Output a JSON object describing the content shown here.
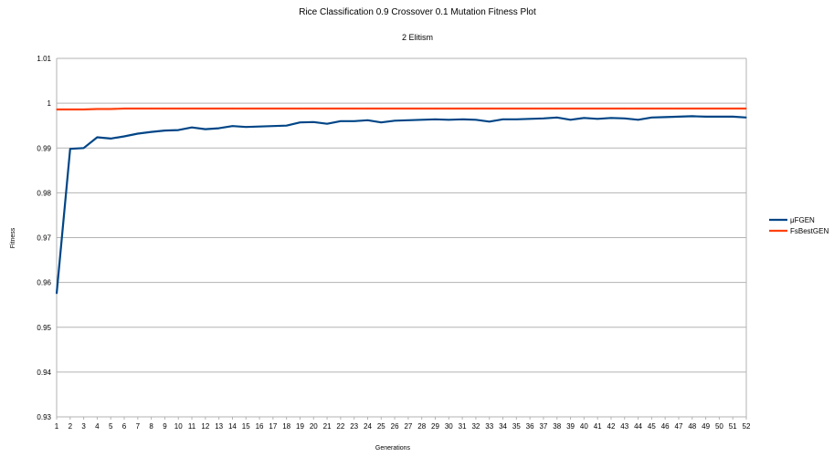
{
  "chart_data": {
    "type": "line",
    "title": "Rice Classification 0.9 Crossover 0.1 Mutation Fitness Plot",
    "subtitle": "2 Elitism",
    "xlabel": "Generations",
    "ylabel": "Fitness",
    "ylim": [
      0.93,
      1.01
    ],
    "yticks": [
      "0.93",
      "0.94",
      "0.95",
      "0.96",
      "0.97",
      "0.98",
      "0.99",
      "1",
      "1.01"
    ],
    "grid": true,
    "legend_position": "right",
    "x": [
      1,
      2,
      3,
      4,
      5,
      6,
      7,
      8,
      9,
      10,
      11,
      12,
      13,
      14,
      15,
      16,
      17,
      18,
      19,
      20,
      21,
      22,
      23,
      24,
      25,
      26,
      27,
      28,
      29,
      30,
      31,
      32,
      33,
      34,
      35,
      36,
      37,
      38,
      39,
      40,
      41,
      42,
      43,
      44,
      45,
      46,
      47,
      48,
      49,
      50,
      51,
      52
    ],
    "series": [
      {
        "name": "μFGEN",
        "color": "#004586",
        "values": [
          0.9575,
          0.9898,
          0.99,
          0.9924,
          0.9921,
          0.9926,
          0.9932,
          0.9936,
          0.9939,
          0.994,
          0.9946,
          0.9942,
          0.9944,
          0.9949,
          0.9947,
          0.9948,
          0.9949,
          0.995,
          0.9957,
          0.9958,
          0.9954,
          0.996,
          0.996,
          0.9962,
          0.9957,
          0.9961,
          0.9962,
          0.9963,
          0.9964,
          0.9963,
          0.9964,
          0.9963,
          0.9959,
          0.9964,
          0.9964,
          0.9965,
          0.9966,
          0.9968,
          0.9963,
          0.9967,
          0.9965,
          0.9967,
          0.9966,
          0.9963,
          0.9968,
          0.9969,
          0.997,
          0.9971,
          0.997,
          0.997,
          0.997,
          0.9968
        ]
      },
      {
        "name": "FsBestGEN",
        "color": "#ff420e",
        "values": [
          0.9986,
          0.9986,
          0.9986,
          0.9987,
          0.9987,
          0.9988,
          0.9988,
          0.9988,
          0.9988,
          0.9988,
          0.9988,
          0.9988,
          0.9988,
          0.9988,
          0.9988,
          0.9988,
          0.9988,
          0.9988,
          0.9988,
          0.9988,
          0.9988,
          0.9988,
          0.9988,
          0.9988,
          0.9988,
          0.9988,
          0.9988,
          0.9988,
          0.9988,
          0.9988,
          0.9988,
          0.9988,
          0.9988,
          0.9988,
          0.9988,
          0.9988,
          0.9988,
          0.9988,
          0.9988,
          0.9988,
          0.9988,
          0.9988,
          0.9988,
          0.9988,
          0.9988,
          0.9988,
          0.9988,
          0.9988,
          0.9988,
          0.9988,
          0.9988,
          0.9988
        ]
      }
    ]
  }
}
